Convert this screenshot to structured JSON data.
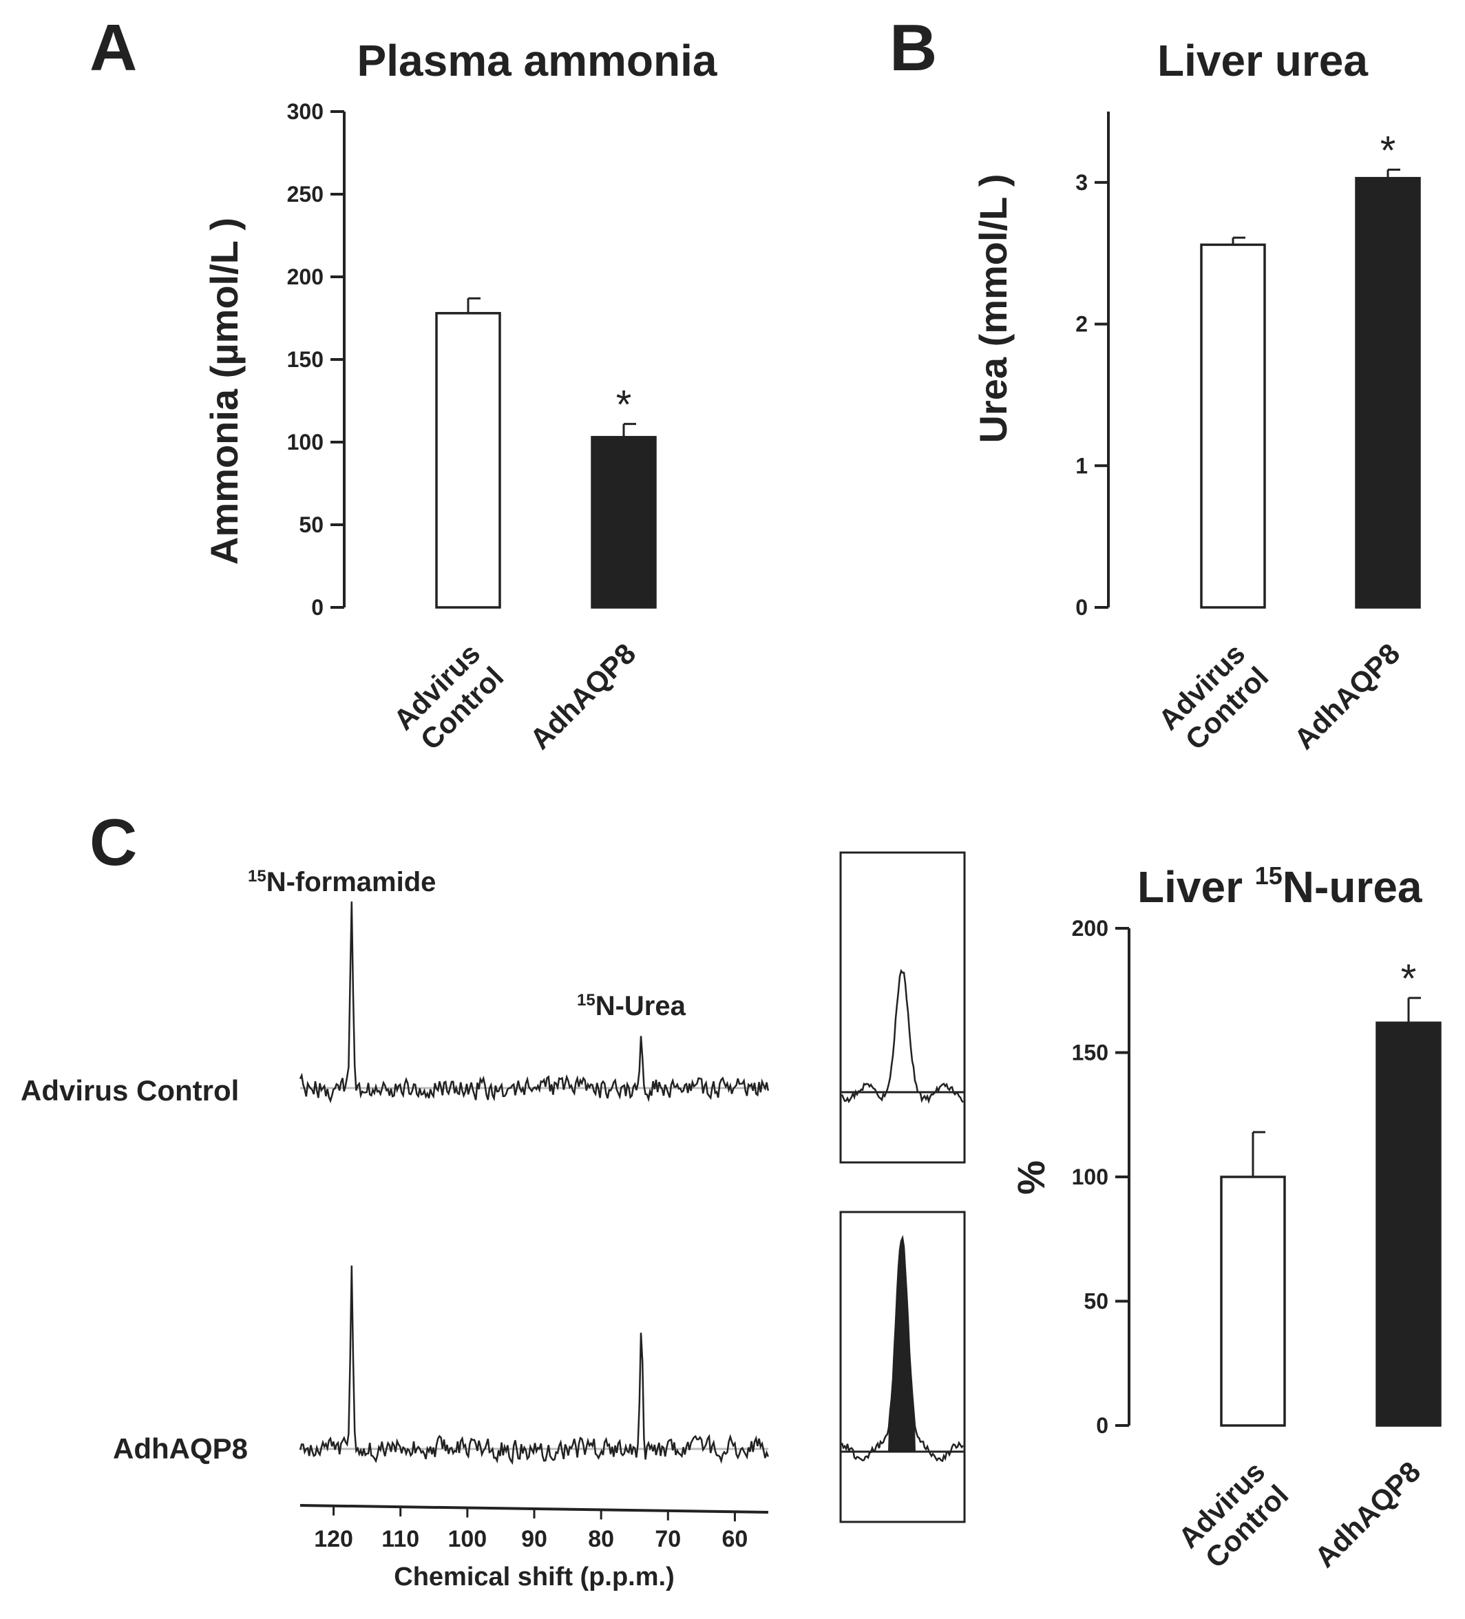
{
  "colors": {
    "ink": "#222222",
    "bar_control": "#ffffff",
    "bar_treated": "#222222",
    "baseline": "#bbbbbb"
  },
  "panels": {
    "a": "A",
    "b": "B",
    "c": "C"
  },
  "chart_data": [
    {
      "id": "A",
      "type": "bar",
      "title": "Plasma ammonia",
      "ylabel": "Ammonia (µmol/L )",
      "categories": [
        "Advirus\nControl",
        "AdhAQP8"
      ],
      "values": [
        178,
        103
      ],
      "errors": [
        9,
        8
      ],
      "significance": [
        "",
        "*"
      ],
      "bar_fill": [
        "#ffffff",
        "#222222"
      ],
      "ylim": [
        0,
        300
      ],
      "yticks": [
        0,
        50,
        100,
        150,
        200,
        250,
        300
      ]
    },
    {
      "id": "B",
      "type": "bar",
      "title": "Liver urea",
      "ylabel": "Urea (mmol/L )",
      "categories": [
        "Advirus\nControl",
        "AdhAQP8"
      ],
      "values": [
        2.56,
        3.03
      ],
      "errors": [
        0.05,
        0.06
      ],
      "significance": [
        "",
        "*"
      ],
      "bar_fill": [
        "#ffffff",
        "#222222"
      ],
      "ylim": [
        0,
        3.5
      ],
      "yticks": [
        0,
        1,
        2,
        3
      ]
    },
    {
      "id": "C-spectra",
      "type": "line",
      "xlabel": "Chemical shift (p.p.m.)",
      "xlim": [
        125,
        55
      ],
      "xticks": [
        120,
        110,
        100,
        90,
        80,
        70,
        60
      ],
      "peak_labels": [
        {
          "sup": "15",
          "text": "N-formamide",
          "x": 117
        },
        {
          "sup": "15",
          "text": "N-Urea",
          "x": 74
        }
      ],
      "series": [
        {
          "name": "Advirus Control",
          "peaks": [
            {
              "x": 117.3,
              "height": 1.0
            },
            {
              "x": 74.0,
              "height": 0.3
            }
          ]
        },
        {
          "name": "AdhAQP8",
          "peaks": [
            {
              "x": 117.3,
              "height": 1.0
            },
            {
              "x": 74.0,
              "height": 0.66
            }
          ]
        }
      ]
    },
    {
      "id": "C-bar",
      "type": "bar",
      "title": {
        "pre": "Liver ",
        "sup": "15",
        "post": "N-urea"
      },
      "ylabel": "%",
      "categories": [
        "Advirus\nControl",
        "AdhAQP8"
      ],
      "values": [
        100,
        162
      ],
      "errors": [
        18,
        10
      ],
      "significance": [
        "",
        "*"
      ],
      "bar_fill": [
        "#ffffff",
        "#222222"
      ],
      "ylim": [
        0,
        200
      ],
      "yticks": [
        0,
        50,
        100,
        150,
        200
      ]
    }
  ]
}
